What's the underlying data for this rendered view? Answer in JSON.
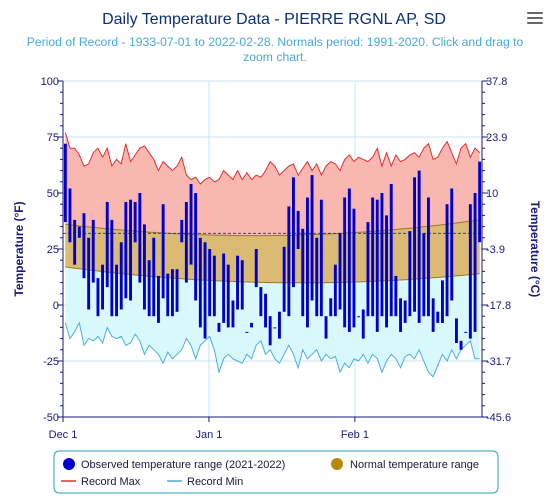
{
  "chart_data": {
    "type": "bar",
    "title": "Daily Temperature Data - PIERRE RGNL AP, SD",
    "subtitle": "Period of Record - 1933-07-01 to 2022-02-28. Normals period: 1991-2020. Click and drag to zoom chart.",
    "ylabel": "Temperature (°F)",
    "y2label": "Temperature (°C)",
    "ylim": [
      -50,
      100
    ],
    "yticks": [
      -50,
      -25,
      0,
      25,
      50,
      75,
      100
    ],
    "y2ticks": [
      "-45.6",
      "-31.7",
      "-17.8",
      "-3.9",
      "10",
      "23.9",
      "37.8"
    ],
    "x_start": "2021-12-01",
    "x_end": "2022-02-28",
    "xtick_labels": [
      {
        "date": "2021-12-01",
        "label": "Dec 1"
      },
      {
        "date": "2022-01-01",
        "label": "Jan 1"
      },
      {
        "date": "2022-02-01",
        "label": "Feb 1"
      }
    ],
    "dates_note": "",
    "observed_high": [
      72,
      52,
      38,
      35,
      41,
      30,
      38,
      12,
      18,
      46,
      38,
      18,
      28,
      46,
      47,
      46,
      50,
      36,
      20,
      30,
      13,
      45,
      14,
      16,
      16,
      38,
      46,
      54,
      50,
      30,
      28,
      25,
      22,
      -8,
      23,
      18,
      2,
      22,
      20,
      -12,
      -10,
      25,
      8,
      5,
      -5,
      -10,
      -3,
      26,
      44,
      57,
      42,
      34,
      48,
      58,
      30,
      47,
      -5,
      3,
      18,
      32,
      48,
      52,
      43,
      -5,
      -2,
      37,
      48,
      47,
      50,
      40,
      54,
      13,
      3,
      2,
      33,
      57,
      60,
      32,
      48,
      3,
      -3,
      11,
      45,
      52,
      -6,
      -16,
      -12,
      45,
      50,
      64
    ],
    "observed_low": [
      37,
      28,
      18,
      30,
      12,
      -2,
      10,
      -5,
      -2,
      8,
      -5,
      -5,
      -2,
      3,
      2,
      28,
      10,
      -2,
      -5,
      -5,
      -8,
      3,
      -5,
      -5,
      -3,
      28,
      10,
      18,
      2,
      -10,
      -15,
      -5,
      -5,
      -12,
      -8,
      -10,
      -10,
      -2,
      -2,
      -12,
      -8,
      8,
      -5,
      -10,
      -18,
      -10,
      -15,
      -3,
      -5,
      8,
      25,
      -5,
      -10,
      2,
      -5,
      -5,
      -15,
      -5,
      -5,
      -2,
      -10,
      -12,
      -10,
      -5,
      -15,
      -5,
      -5,
      -12,
      -5,
      -10,
      -5,
      -5,
      -12,
      -8,
      -5,
      -3,
      -8,
      -5,
      -5,
      -12,
      -8,
      -8,
      -5,
      2,
      -17,
      -20,
      -12,
      -15,
      -12,
      28
    ],
    "normal_high_start": 36,
    "normal_high_end": 38,
    "normal_high_min": 31,
    "normal_low_start": 17,
    "normal_low_end": 14,
    "normal_low_min": 10,
    "record_max": [
      77,
      70,
      70,
      67,
      62,
      63,
      68,
      70,
      66,
      70,
      62,
      65,
      63,
      72,
      64,
      67,
      70,
      71,
      68,
      65,
      60,
      64,
      62,
      60,
      62,
      66,
      58,
      56,
      57,
      54,
      56,
      57,
      55,
      56,
      60,
      58,
      56,
      60,
      56,
      59,
      56,
      58,
      57,
      60,
      64,
      62,
      58,
      60,
      62,
      63,
      58,
      61,
      64,
      60,
      63,
      58,
      62,
      64,
      63,
      60,
      65,
      67,
      64,
      66,
      65,
      64,
      66,
      70,
      62,
      68,
      62,
      67,
      64,
      65,
      67,
      68,
      66,
      70,
      72,
      65,
      66,
      70,
      73,
      68,
      63,
      70,
      72,
      66,
      70,
      68
    ],
    "record_min": [
      -8,
      -15,
      -12,
      -8,
      -18,
      -15,
      -16,
      -14,
      -17,
      -10,
      -14,
      -15,
      -14,
      -18,
      -17,
      -13,
      -16,
      -22,
      -18,
      -20,
      -22,
      -26,
      -21,
      -24,
      -22,
      -20,
      -15,
      -18,
      -24,
      -18,
      -16,
      -14,
      -20,
      -30,
      -24,
      -22,
      -24,
      -25,
      -26,
      -22,
      -24,
      -18,
      -16,
      -22,
      -20,
      -24,
      -26,
      -22,
      -18,
      -22,
      -28,
      -20,
      -24,
      -22,
      -20,
      -25,
      -22,
      -24,
      -23,
      -30,
      -26,
      -28,
      -24,
      -25,
      -22,
      -26,
      -22,
      -24,
      -30,
      -25,
      -22,
      -24,
      -28,
      -23,
      -22,
      -24,
      -20,
      -25,
      -30,
      -32,
      -27,
      -22,
      -25,
      -20,
      -24,
      -20,
      -18,
      -16,
      -24,
      -24
    ],
    "threshold_line": 32,
    "legend_position": "bottom",
    "legend": [
      {
        "label": "Observed temperature range (2021-2022)",
        "color": "#0000cc",
        "symbol": "dot"
      },
      {
        "label": "Normal temperature range",
        "color": "#b8860b",
        "symbol": "dot"
      },
      {
        "label": "Record Max",
        "color": "#e03030",
        "symbol": "line"
      },
      {
        "label": "Record Min",
        "color": "#4aaee0",
        "symbol": "line"
      }
    ],
    "colors": {
      "observed": "#0000cc",
      "normal_fill": "#d9b66b",
      "normal_edge": "#a07820",
      "record_max_line": "#e03030",
      "record_max_fill": "#f9b7b2",
      "record_min_line": "#4aaee0",
      "record_min_fill": "#d8f8fb",
      "title": "#0b2f7a",
      "subtitle": "#4aa8d8",
      "axis_label": "#1a1a7a",
      "grid": "#c8e6f4",
      "threshold": "#2b2b8f"
    },
    "grid": true
  },
  "menu": {
    "icon": "hamburger-menu-icon"
  }
}
